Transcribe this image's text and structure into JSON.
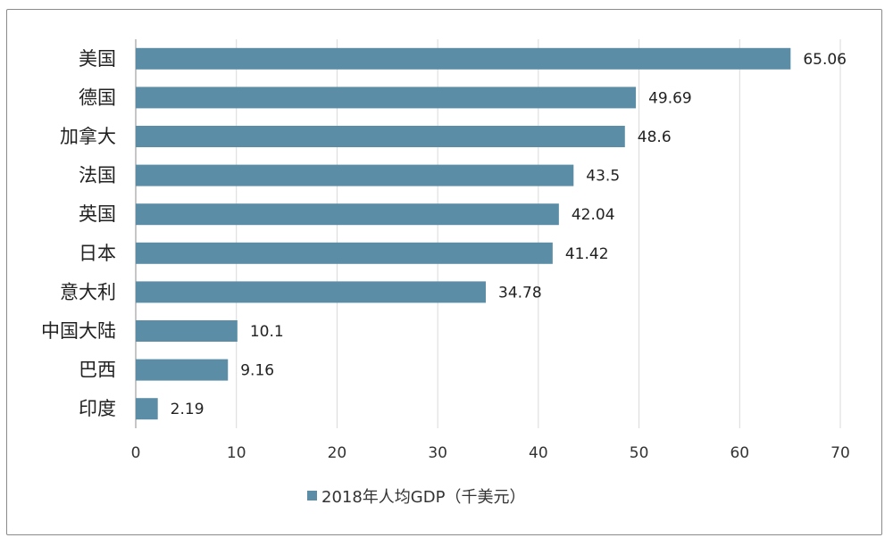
{
  "chart_data": {
    "type": "bar",
    "orientation": "horizontal",
    "categories": [
      "美国",
      "德国",
      "加拿大",
      "法国",
      "英国",
      "日本",
      "意大利",
      "中国大陆",
      "巴西",
      "印度"
    ],
    "series": [
      {
        "name": "2018年人均GDP（千美元）",
        "values": [
          65.06,
          49.69,
          48.6,
          43.5,
          42.04,
          41.42,
          34.78,
          10.1,
          9.16,
          2.19
        ],
        "value_labels": [
          "65.06",
          "49.69",
          "48.6",
          "43.5",
          "42.04",
          "41.42",
          "34.78",
          "10.1",
          "9.16",
          "2.19"
        ]
      }
    ],
    "xlim": [
      0,
      70
    ],
    "x_ticks": [
      0,
      10,
      20,
      30,
      40,
      50,
      60,
      70
    ],
    "x_tick_labels": [
      "0",
      "10",
      "20",
      "30",
      "40",
      "50",
      "60",
      "70"
    ],
    "grid": "vertical",
    "legend_position": "bottom",
    "bar_color": "#5b8ea6",
    "grid_color": "#d9d9d9",
    "axis_color": "#8c8c8c"
  }
}
